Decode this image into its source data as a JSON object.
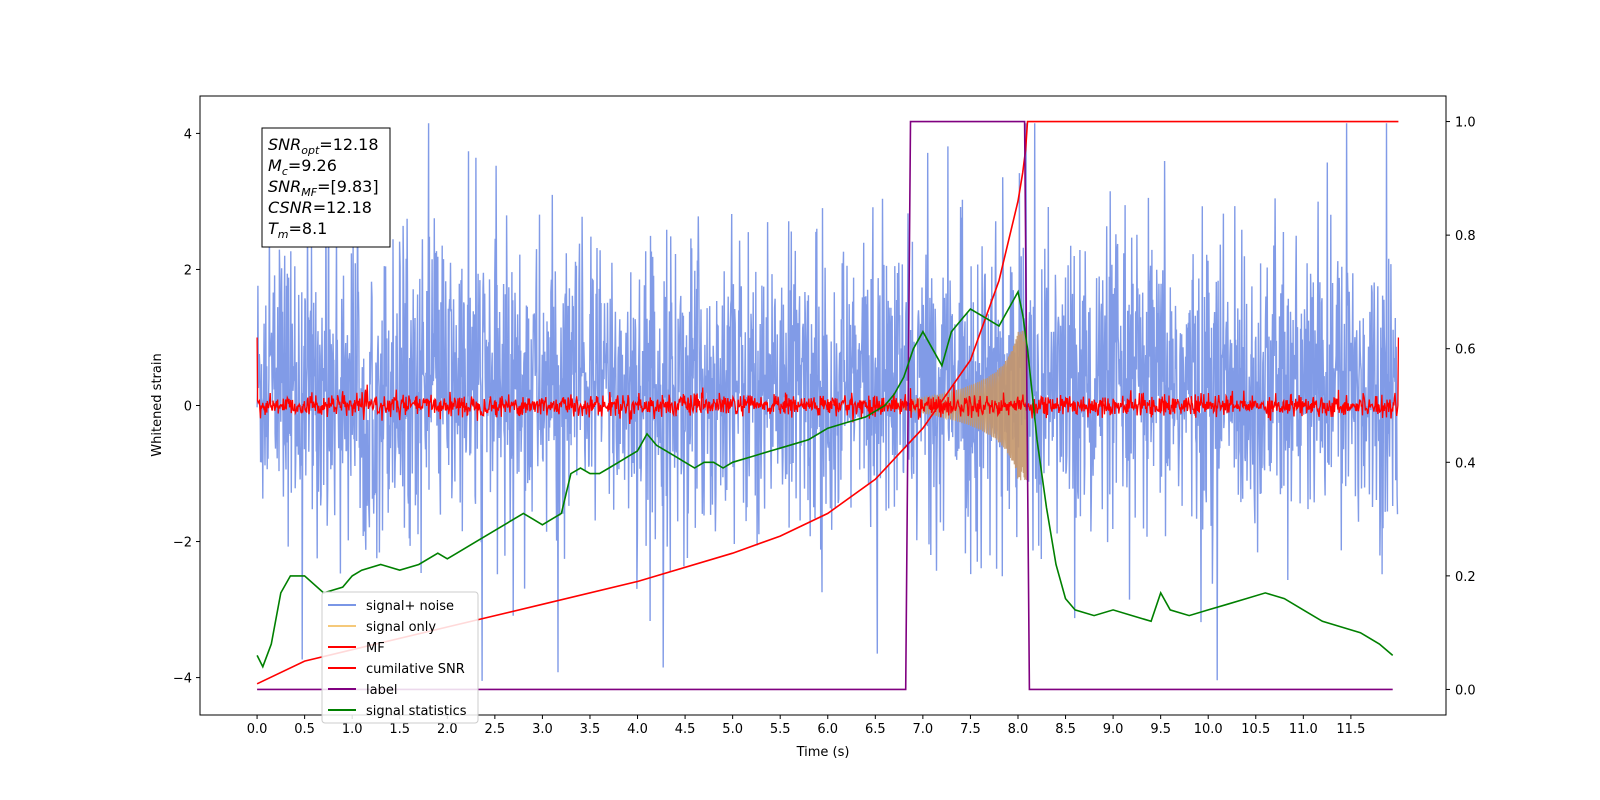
{
  "chart_data": {
    "type": "line",
    "xlabel": "Time (s)",
    "ylabel": "Whitened strain",
    "xlim": [
      -0.6,
      12.5
    ],
    "ylim": [
      -4.55,
      4.55
    ],
    "y2lim": [
      -0.045,
      1.045
    ],
    "x_ticks": [
      "0.0",
      "0.5",
      "1.0",
      "1.5",
      "2.0",
      "2.5",
      "3.0",
      "3.5",
      "4.0",
      "4.5",
      "5.0",
      "5.5",
      "6.0",
      "6.5",
      "7.0",
      "7.5",
      "8.0",
      "8.5",
      "9.0",
      "9.5",
      "10.0",
      "10.5",
      "11.0",
      "11.5"
    ],
    "y_ticks": [
      "−4",
      "−2",
      "0",
      "2",
      "4"
    ],
    "y2_ticks": [
      "0.0",
      "0.2",
      "0.4",
      "0.6",
      "0.8",
      "1.0"
    ],
    "grid": false,
    "legend_position": "lower-left",
    "annotation": [
      {
        "name": "SNR",
        "sub": "opt",
        "value": "=12.18"
      },
      {
        "name": "M",
        "sub": "c",
        "value": "=9.26"
      },
      {
        "name": "SNR",
        "sub": "MF",
        "value": "=[9.83]"
      },
      {
        "name": "CSNR",
        "sub": "",
        "value": "=12.18"
      },
      {
        "name": "T",
        "sub": "m",
        "value": "=8.1"
      }
    ],
    "series": [
      {
        "name": "signal+ noise",
        "color": "#7a96e6",
        "axis": "left",
        "kind": "noise",
        "x_range": [
          0.0,
          11.99
        ],
        "amplitude_std": 1.05,
        "offset": 0.3
      },
      {
        "name": "signal only",
        "color": "#f5c97a",
        "axis": "left",
        "kind": "chirp",
        "x_range": [
          6.5,
          8.1
        ],
        "peak_amplitude": 1.1,
        "merger_time": 8.1
      },
      {
        "name": "MF",
        "color": "#ff0000",
        "axis": "left",
        "kind": "noise",
        "x_range": [
          0.0,
          12.0
        ],
        "amplitude_std": 0.08,
        "offset": 0.0
      },
      {
        "name": "cumilative SNR",
        "color": "#ff0000",
        "axis": "right",
        "x": [
          0.0,
          0.5,
          1.0,
          2.0,
          3.0,
          4.0,
          5.0,
          5.5,
          6.0,
          6.5,
          7.0,
          7.5,
          7.8,
          8.0,
          8.05,
          8.08,
          8.1,
          8.12,
          12.0
        ],
        "y": [
          0.01,
          0.05,
          0.07,
          0.11,
          0.15,
          0.19,
          0.24,
          0.27,
          0.31,
          0.37,
          0.46,
          0.58,
          0.72,
          0.86,
          0.91,
          0.95,
          1.0,
          1.0,
          1.0
        ]
      },
      {
        "name": "label",
        "color": "#800080",
        "axis": "right",
        "x": [
          0.0,
          6.82,
          6.87,
          8.07,
          8.12,
          11.94
        ],
        "y": [
          0.0,
          0.0,
          1.0,
          1.0,
          0.0,
          0.0
        ]
      },
      {
        "name": "signal statistics",
        "color": "#008000",
        "axis": "right",
        "x": [
          0.0,
          0.06,
          0.15,
          0.25,
          0.35,
          0.5,
          0.7,
          0.9,
          1.0,
          1.1,
          1.3,
          1.5,
          1.7,
          1.9,
          2.0,
          2.1,
          2.3,
          2.5,
          2.7,
          2.8,
          2.9,
          3.0,
          3.1,
          3.2,
          3.3,
          3.4,
          3.5,
          3.6,
          3.7,
          3.8,
          3.9,
          4.0,
          4.1,
          4.2,
          4.3,
          4.4,
          4.5,
          4.6,
          4.7,
          4.8,
          4.9,
          5.0,
          5.2,
          5.4,
          5.6,
          5.8,
          6.0,
          6.2,
          6.4,
          6.5,
          6.6,
          6.7,
          6.8,
          6.9,
          7.0,
          7.1,
          7.2,
          7.3,
          7.4,
          7.5,
          7.6,
          7.7,
          7.8,
          7.9,
          8.0,
          8.05,
          8.1,
          8.2,
          8.3,
          8.4,
          8.5,
          8.6,
          8.8,
          9.0,
          9.2,
          9.4,
          9.5,
          9.6,
          9.8,
          10.0,
          10.2,
          10.4,
          10.6,
          10.8,
          11.0,
          11.2,
          11.4,
          11.6,
          11.8,
          11.94
        ],
        "y": [
          0.06,
          0.04,
          0.08,
          0.17,
          0.2,
          0.2,
          0.17,
          0.18,
          0.2,
          0.21,
          0.22,
          0.21,
          0.22,
          0.24,
          0.23,
          0.24,
          0.26,
          0.28,
          0.3,
          0.31,
          0.3,
          0.29,
          0.3,
          0.31,
          0.38,
          0.39,
          0.38,
          0.38,
          0.39,
          0.4,
          0.41,
          0.42,
          0.45,
          0.43,
          0.42,
          0.41,
          0.4,
          0.39,
          0.4,
          0.4,
          0.39,
          0.4,
          0.41,
          0.42,
          0.43,
          0.44,
          0.46,
          0.47,
          0.48,
          0.49,
          0.5,
          0.52,
          0.55,
          0.6,
          0.63,
          0.6,
          0.57,
          0.63,
          0.65,
          0.67,
          0.66,
          0.65,
          0.64,
          0.67,
          0.7,
          0.66,
          0.6,
          0.44,
          0.32,
          0.22,
          0.16,
          0.14,
          0.13,
          0.14,
          0.13,
          0.12,
          0.17,
          0.14,
          0.13,
          0.14,
          0.15,
          0.16,
          0.17,
          0.16,
          0.14,
          0.12,
          0.11,
          0.1,
          0.08,
          0.06
        ]
      }
    ]
  }
}
